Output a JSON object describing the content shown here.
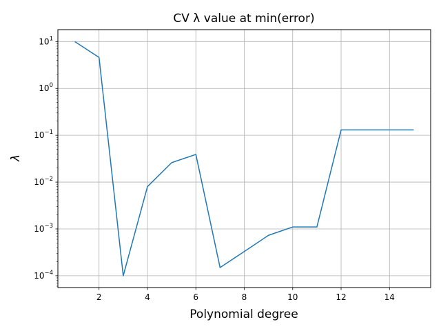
{
  "chart_data": {
    "type": "line",
    "title": "CV λ value at min(error)",
    "xlabel": "Polynomial degree",
    "ylabel": "λ",
    "yscale": "log",
    "xlim": [
      0.3,
      15.7
    ],
    "ylim": [
      5.6e-05,
      18
    ],
    "grid": true,
    "x_ticks": [
      2,
      4,
      6,
      8,
      10,
      12,
      14
    ],
    "y_ticks": [
      {
        "value": 0.0001,
        "mant": "10",
        "exp": "−4"
      },
      {
        "value": 0.001,
        "mant": "10",
        "exp": "−3"
      },
      {
        "value": 0.01,
        "mant": "10",
        "exp": "−2"
      },
      {
        "value": 0.1,
        "mant": "10",
        "exp": "−1"
      },
      {
        "value": 1,
        "mant": "10",
        "exp": "0"
      },
      {
        "value": 10,
        "mant": "10",
        "exp": "1"
      }
    ],
    "series": [
      {
        "color": "#1f77b4",
        "x": [
          1,
          2,
          3,
          4,
          5,
          6,
          7,
          8,
          9,
          10,
          11,
          12,
          13,
          14,
          15
        ],
        "values": [
          10,
          4.6,
          0.0001,
          0.008,
          0.026,
          0.039,
          0.00015,
          0.00033,
          0.00073,
          0.0011,
          0.0011,
          0.13,
          0.13,
          0.13,
          0.13
        ]
      }
    ]
  }
}
